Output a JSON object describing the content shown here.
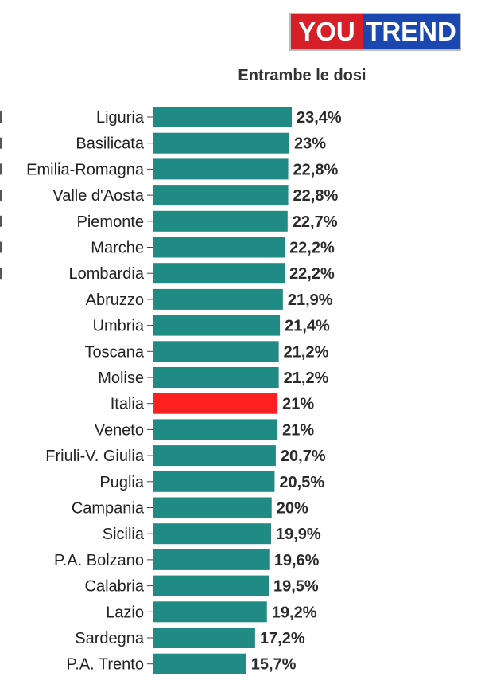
{
  "logo": {
    "part1": "YOU",
    "part2": "TREND"
  },
  "chart_data": {
    "type": "bar",
    "orientation": "horizontal",
    "title": "Entrambe le dosi",
    "categories": [
      "Liguria",
      "Basilicata",
      "Emilia-Romagna",
      "Valle d'Aosta",
      "Piemonte",
      "Marche",
      "Lombardia",
      "Abruzzo",
      "Umbria",
      "Toscana",
      "Molise",
      "Italia",
      "Veneto",
      "Friuli-V. Giulia",
      "Puglia",
      "Campania",
      "Sicilia",
      "P.A. Bolzano",
      "Calabria",
      "Lazio",
      "Sardegna",
      "P.A. Trento"
    ],
    "values": [
      23.4,
      23,
      22.8,
      22.8,
      22.7,
      22.2,
      22.2,
      21.9,
      21.4,
      21.2,
      21.2,
      21,
      21,
      20.7,
      20.5,
      20,
      19.9,
      19.6,
      19.5,
      19.2,
      17.2,
      15.7
    ],
    "value_labels": [
      "23,4%",
      "23%",
      "22,8%",
      "22,8%",
      "22,7%",
      "22,2%",
      "22,2%",
      "21,9%",
      "21,4%",
      "21,2%",
      "21,2%",
      "21%",
      "21%",
      "20,7%",
      "20,5%",
      "20%",
      "19,9%",
      "19,6%",
      "19,5%",
      "19,2%",
      "17,2%",
      "15,7%"
    ],
    "highlight_category": "Italia",
    "colors": {
      "bar": "#1f8b84",
      "highlight": "#ff2020"
    },
    "xlim": [
      0,
      23.4
    ],
    "grid": false,
    "legend": "none"
  }
}
